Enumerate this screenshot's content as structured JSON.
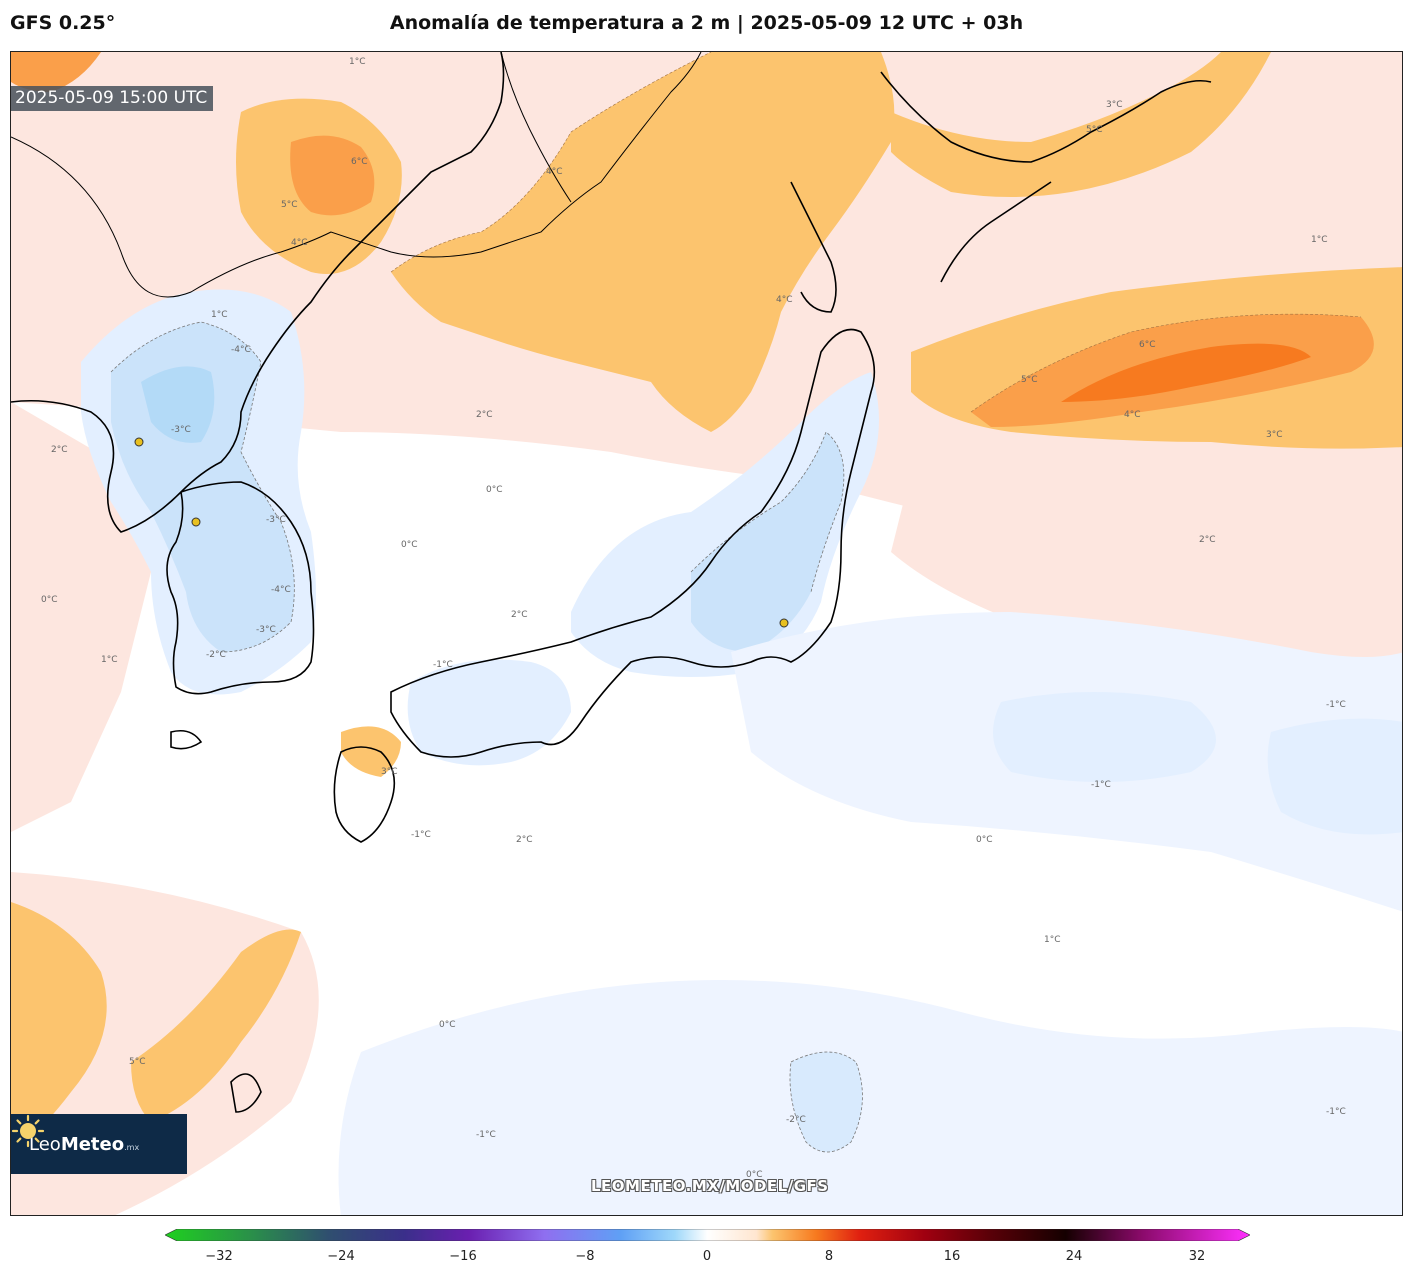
{
  "header": {
    "model": "GFS 0.25°",
    "title": "Anomalía de temperatura a 2 m | 2025-05-09 12 UTC + 03h"
  },
  "map": {
    "valid_time": "2025-05-09 15:00 UTC",
    "watermark": "LEOMETEO.MX/MODEL/GFS",
    "logo": {
      "brand_light": "Leo",
      "brand_bold": "Meteo",
      "suffix": ".mx"
    },
    "contour_labels": {
      "l_neg4_a": "-4°C",
      "l_neg3_a": "-3°C",
      "l_neg2_a": "-2°C",
      "l_neg1_a": "-1°C",
      "l_neg3_b": "-3°C",
      "l_neg4_b": "-4°C",
      "l_neg3_c": "-3°C",
      "l_neg2_b": "-2°C",
      "l_0_a": "0°C",
      "l_0_b": "0°C",
      "l_0_c": "0°C",
      "l_0_d": "0°C",
      "l_1_a": "1°C",
      "l_1_b": "1°C",
      "l_1_c": "1°C",
      "l_2_a": "2°C",
      "l_2_b": "2°C",
      "l_2_c": "2°C",
      "l_2_d": "2°C",
      "l_3_a": "3°C",
      "l_3_b": "3°C",
      "l_4_a": "4°C",
      "l_4_b": "4°C",
      "l_4_c": "4°C",
      "l_4_d": "4°C",
      "l_5_a": "5°C",
      "l_5_b": "5°C",
      "l_5_c": "5°C",
      "l_6_a": "6°C",
      "l_6_b": "6°C",
      "l_neg1_c": "-1°C",
      "l_neg1_d": "-1°C",
      "l_neg1_e": "-1°C",
      "l_neg1_f": "-1°C",
      "l_neg2_c": "-2°C",
      "l_0_e": "0°C",
      "l_0_f": "0°C",
      "l_0_g": "0°C",
      "l_1_d": "1°C",
      "l_1_e": "1°C",
      "l_neg1_g": "-1°C",
      "l_neg1_h": "-1°C",
      "l_2_e": "2°C",
      "l_3_c": "3°C",
      "l_5_d": "5°C",
      "l_1_f": "1°C"
    }
  },
  "colorbar": {
    "ticks": [
      "−32",
      "−24",
      "−16",
      "−8",
      "0",
      "8",
      "16",
      "24",
      "32"
    ]
  }
}
